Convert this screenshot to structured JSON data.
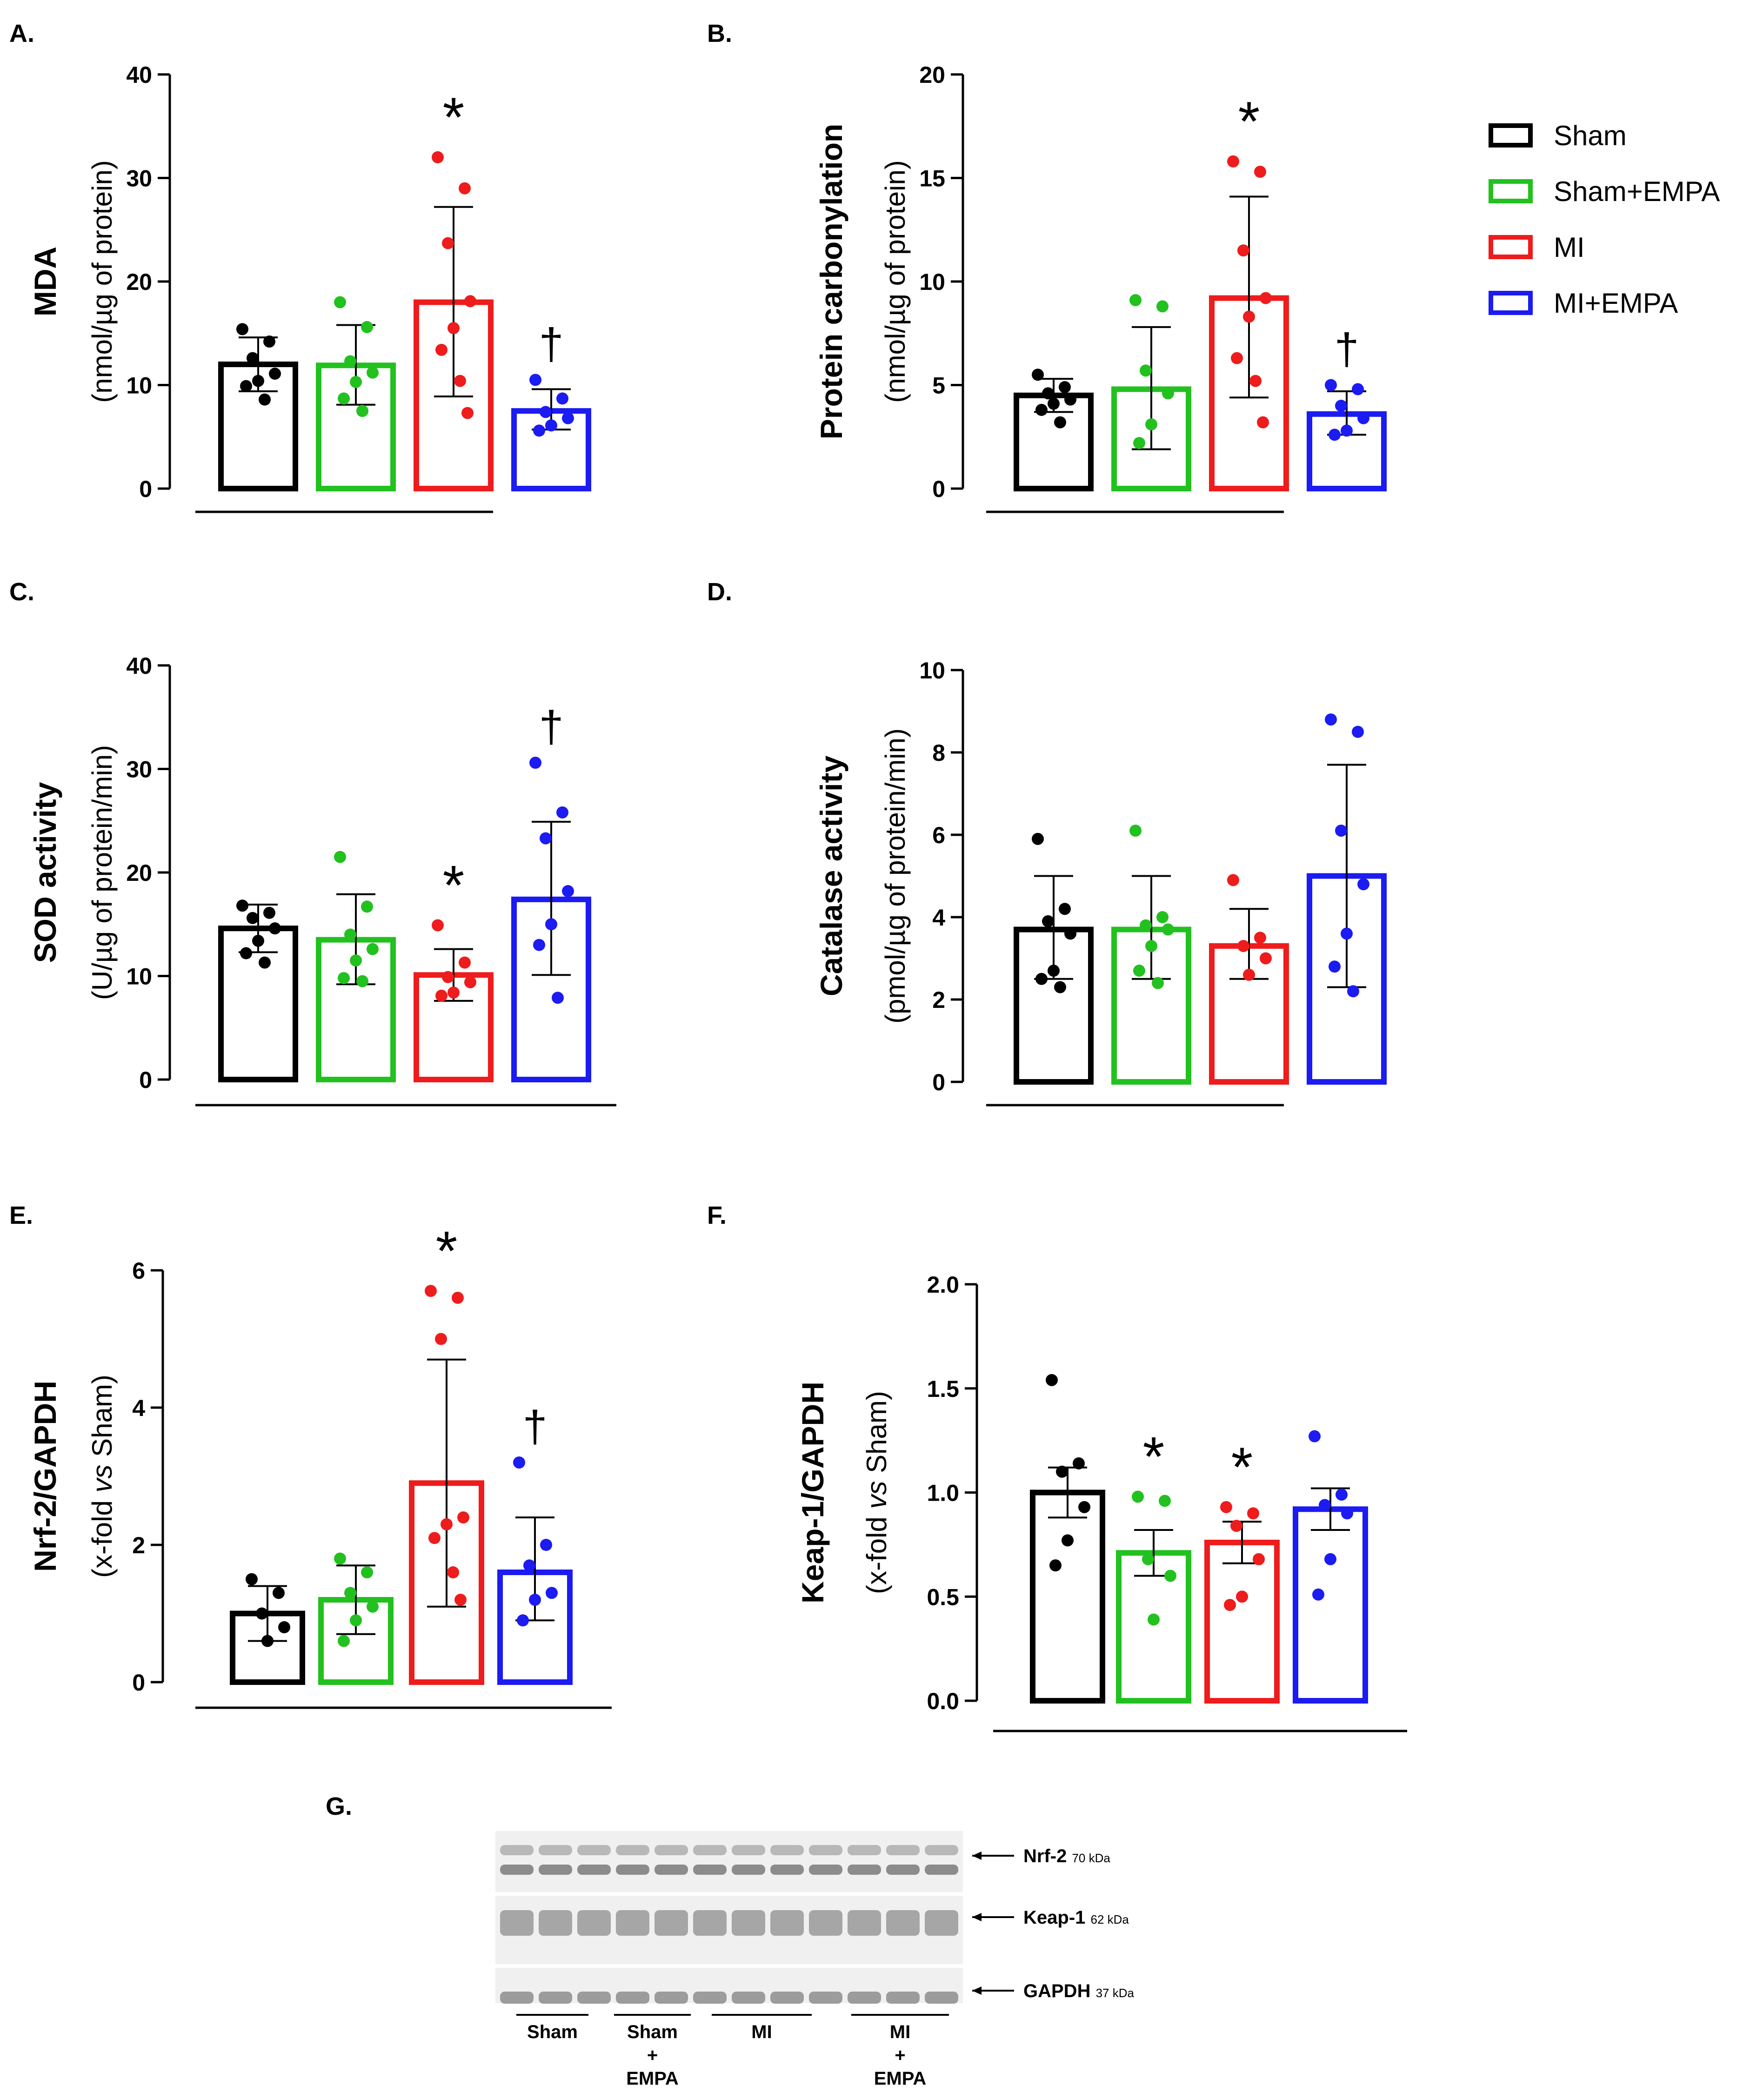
{
  "figure": {
    "colors": {
      "Sham": "#000000",
      "Sham+EMPA": "#22c11f",
      "MI": "#ee1c1c",
      "MI+EMPA": "#1b1bf2"
    },
    "legend": [
      {
        "label": "Sham",
        "color": "#000000"
      },
      {
        "label": "Sham+EMPA",
        "color": "#22c11f"
      },
      {
        "label": "MI",
        "color": "#ee1c1c"
      },
      {
        "label": "MI+EMPA",
        "color": "#1b1bf2"
      }
    ]
  },
  "chart_data": [
    {
      "type": "bar",
      "panel": "A.",
      "ylabel_main": "MDA",
      "ylabel_sub": "(nmol/µg of protein)",
      "ylim": [
        0,
        40
      ],
      "ticks": [
        0,
        10,
        20,
        30,
        40
      ],
      "tick_labels": [
        "0",
        "10",
        "20",
        "30",
        "40"
      ],
      "categories": [
        "Sham",
        "Sham+EMPA",
        "MI",
        "MI+EMPA"
      ],
      "values": [
        12.0,
        11.9,
        18.0,
        7.5
      ],
      "err_upper": [
        14.6,
        15.8,
        27.2,
        9.6
      ],
      "err_lower": [
        9.4,
        8.1,
        8.9,
        5.7
      ],
      "points": [
        [
          15.4,
          14.2,
          12.6,
          11.1,
          10.4,
          9.9,
          8.6
        ],
        [
          18.0,
          15.6,
          12.3,
          11.2,
          10.3,
          8.7,
          7.5
        ],
        [
          32.0,
          29.0,
          23.7,
          18.1,
          15.5,
          13.4,
          10.4,
          7.3
        ],
        [
          10.5,
          8.7,
          7.4,
          6.8,
          6.1,
          5.6
        ]
      ],
      "annotations": [
        "",
        "",
        "*",
        "†"
      ]
    },
    {
      "type": "bar",
      "panel": "B.",
      "ylabel_main": "Protein carbonylation",
      "ylabel_sub": "(nmol/µg of protein)",
      "ylim": [
        0,
        20
      ],
      "ticks": [
        0,
        5,
        10,
        15,
        20
      ],
      "tick_labels": [
        "0",
        "5",
        "10",
        "15",
        "20"
      ],
      "categories": [
        "Sham",
        "Sham+EMPA",
        "MI",
        "MI+EMPA"
      ],
      "values": [
        4.5,
        4.8,
        9.2,
        3.6
      ],
      "err_upper": [
        5.3,
        7.8,
        14.1,
        4.7
      ],
      "err_lower": [
        3.7,
        1.9,
        4.4,
        2.6
      ],
      "points": [
        [
          5.5,
          4.9,
          4.6,
          4.3,
          4.1,
          3.8,
          3.2
        ],
        [
          9.1,
          8.8,
          5.7,
          4.6,
          3.1,
          2.2
        ],
        [
          15.8,
          15.3,
          11.5,
          9.2,
          8.3,
          6.3,
          5.2,
          3.2
        ],
        [
          5.0,
          4.8,
          4.0,
          3.4,
          2.8,
          2.6
        ]
      ],
      "annotations": [
        "",
        "",
        "*",
        "†"
      ]
    },
    {
      "type": "bar",
      "panel": "C.",
      "ylabel_main": "SOD activity",
      "ylabel_sub": "(U/µg of protein/min)",
      "ylim": [
        0,
        40
      ],
      "ticks": [
        0,
        10,
        20,
        30,
        40
      ],
      "tick_labels": [
        "0",
        "10",
        "20",
        "30",
        "40"
      ],
      "categories": [
        "Sham",
        "Sham+EMPA",
        "MI",
        "MI+EMPA"
      ],
      "values": [
        14.6,
        13.5,
        10.1,
        17.4
      ],
      "err_upper": [
        16.9,
        17.9,
        12.6,
        24.9
      ],
      "err_lower": [
        12.3,
        9.2,
        7.6,
        10.1
      ],
      "points": [
        [
          16.8,
          16.1,
          15.6,
          14.6,
          13.4,
          12.2,
          11.3
        ],
        [
          21.5,
          16.7,
          14.0,
          12.6,
          11.5,
          9.8,
          9.5
        ],
        [
          14.9,
          11.3,
          9.9,
          9.4,
          8.4,
          8.1
        ],
        [
          30.6,
          25.8,
          23.3,
          18.2,
          15.0,
          13.0,
          7.9
        ]
      ],
      "annotations": [
        "",
        "",
        "*",
        "†"
      ]
    },
    {
      "type": "bar",
      "panel": "D.",
      "ylabel_main": "Catalase activity",
      "ylabel_sub": "(pmol/µg of protein/min)",
      "ylim": [
        0,
        10
      ],
      "ticks": [
        0,
        2,
        4,
        6,
        8,
        10
      ],
      "tick_labels": [
        "0",
        "2",
        "4",
        "6",
        "8",
        "10"
      ],
      "categories": [
        "Sham",
        "Sham+EMPA",
        "MI",
        "MI+EMPA"
      ],
      "values": [
        3.7,
        3.7,
        3.3,
        5.0
      ],
      "err_upper": [
        5.0,
        5.0,
        4.2,
        7.7
      ],
      "err_lower": [
        2.5,
        2.5,
        2.5,
        2.3
      ],
      "points": [
        [
          5.9,
          4.2,
          3.9,
          3.6,
          2.7,
          2.5,
          2.3
        ],
        [
          6.1,
          4.0,
          3.8,
          3.7,
          3.3,
          2.7,
          2.4
        ],
        [
          4.9,
          3.5,
          3.3,
          3.0,
          2.6
        ],
        [
          8.8,
          8.5,
          6.1,
          4.8,
          3.6,
          2.8,
          2.2
        ]
      ],
      "annotations": [
        "",
        "",
        "",
        ""
      ]
    },
    {
      "type": "bar",
      "panel": "E.",
      "ylabel_main": "Nrf-2/GAPDH",
      "ylabel_sub": "(x-fold vs Sham)",
      "ylim": [
        0,
        6
      ],
      "ticks": [
        0,
        2,
        4,
        6
      ],
      "tick_labels": [
        "0",
        "2",
        "4",
        "6"
      ],
      "categories": [
        "Sham",
        "Sham+EMPA",
        "MI",
        "MI+EMPA"
      ],
      "values": [
        1.0,
        1.2,
        2.9,
        1.6
      ],
      "err_upper": [
        1.4,
        1.7,
        4.7,
        2.4
      ],
      "err_lower": [
        0.6,
        0.7,
        1.1,
        0.9
      ],
      "points": [
        [
          1.5,
          1.3,
          1.0,
          0.8,
          0.6
        ],
        [
          1.8,
          1.6,
          1.3,
          1.1,
          0.9,
          0.6
        ],
        [
          5.7,
          5.6,
          5.0,
          2.4,
          2.3,
          2.1,
          1.6,
          1.2
        ],
        [
          3.2,
          2.0,
          1.7,
          1.3,
          1.2,
          0.9
        ]
      ],
      "annotations": [
        "",
        "",
        "*",
        "†"
      ]
    },
    {
      "type": "bar",
      "panel": "F.",
      "ylabel_main": "Keap-1/GAPDH",
      "ylabel_sub": "(x-fold vs Sham)",
      "ylim": [
        0,
        2
      ],
      "ticks": [
        0,
        0.5,
        1,
        1.5,
        2
      ],
      "tick_labels": [
        "0.0",
        "0.5",
        "1.0",
        "1.5",
        "2.0"
      ],
      "categories": [
        "Sham",
        "Sham+EMPA",
        "MI",
        "MI+EMPA"
      ],
      "values": [
        1.0,
        0.71,
        0.76,
        0.92
      ],
      "err_upper": [
        1.12,
        0.82,
        0.86,
        1.02
      ],
      "err_lower": [
        0.88,
        0.6,
        0.66,
        0.82
      ],
      "points": [
        [
          1.54,
          1.14,
          1.1,
          0.93,
          0.77,
          0.65
        ],
        [
          0.98,
          0.96,
          0.68,
          0.6,
          0.39
        ],
        [
          0.93,
          0.9,
          0.84,
          0.68,
          0.5,
          0.46
        ],
        [
          1.27,
          0.99,
          0.94,
          0.9,
          0.68,
          0.51
        ]
      ],
      "annotations": [
        "",
        "*",
        "*",
        ""
      ]
    }
  ],
  "blot": {
    "panel": "G.",
    "rows": [
      {
        "name": "Nrf-2",
        "kda": "70 kDa"
      },
      {
        "name": "Keap-1",
        "kda": "62 kDa"
      },
      {
        "name": "GAPDH",
        "kda": "37 kDa"
      }
    ],
    "groups": [
      {
        "line1": "Sham",
        "line2": "",
        "line3": ""
      },
      {
        "line1": "Sham",
        "line2": "+",
        "line3": "EMPA"
      },
      {
        "line1": "MI",
        "line2": "",
        "line3": ""
      },
      {
        "line1": "MI",
        "line2": "+",
        "line3": "EMPA"
      }
    ]
  }
}
